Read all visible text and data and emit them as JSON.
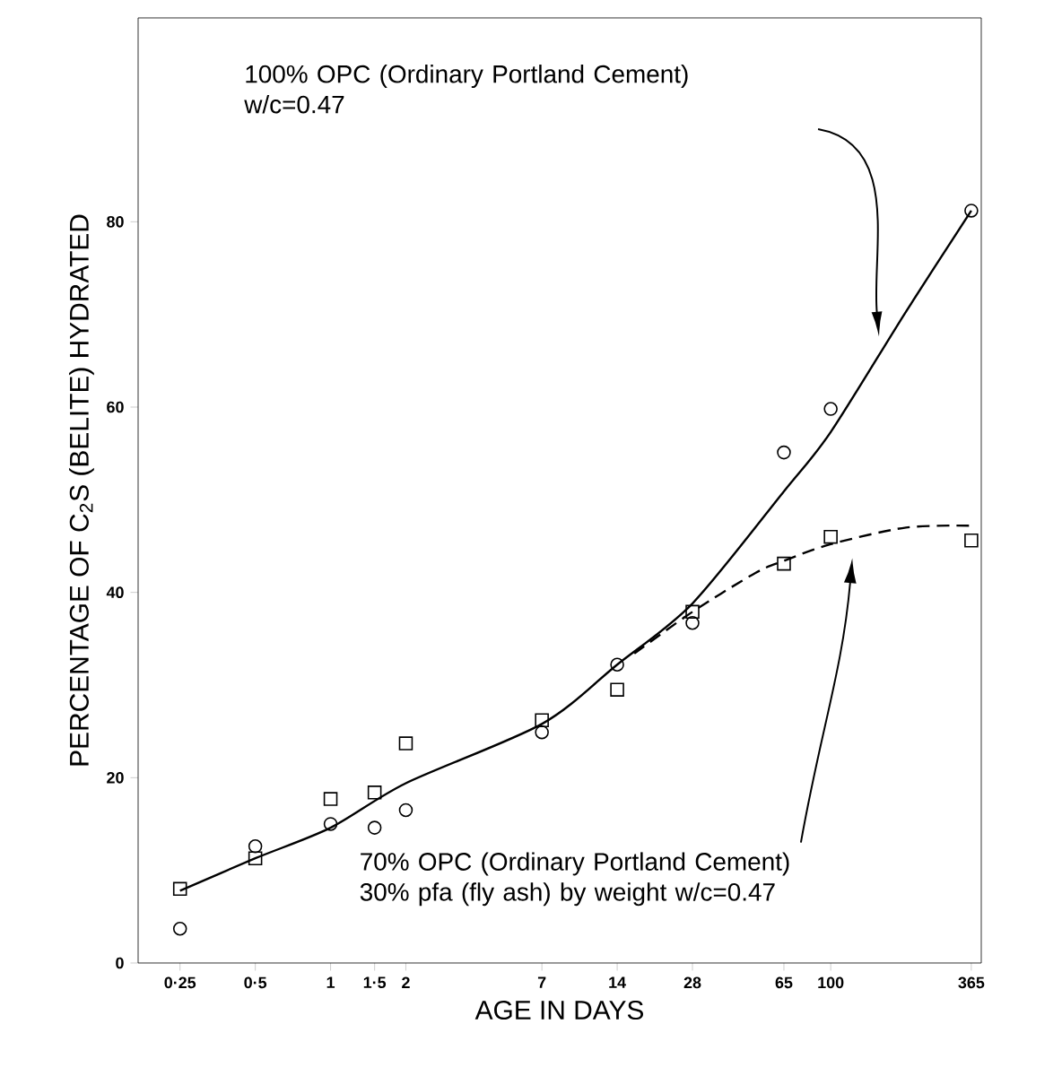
{
  "chart_data": {
    "type": "scatter",
    "xlabel": "AGE IN DAYS",
    "ylabel": "PERCENTAGE OF C$_{2}$S (BELITE) HYDRATED",
    "annotations": [
      "100% OPC (Ordinary Portland Cement) w/c=0.47",
      "70% OPC (Ordinary Portland Cement) 30% pfa (fly ash) by weight w/c=0.47"
    ],
    "log": "x",
    "xlim": [
      0.17,
      400
    ],
    "ylim": [
      0,
      102
    ],
    "xticks": [
      {
        "value": 0.25,
        "label": "0·25"
      },
      {
        "value": 0.5,
        "label": "0·5"
      },
      1,
      {
        "value": 1.5,
        "label": "1·5"
      },
      2,
      7,
      14,
      28,
      65,
      100,
      365
    ],
    "yticks": [
      0,
      20,
      40,
      60,
      80
    ],
    "series": [
      {
        "marker": "circle",
        "color": "#000000",
        "x": [
          0.25,
          0.5,
          1,
          1.5,
          2,
          7,
          14,
          28,
          65,
          100,
          365
        ],
        "values": [
          3.7,
          12.6,
          15,
          14.6,
          16.5,
          24.9,
          32.2,
          36.7,
          55.1,
          59.8,
          81.2
        ]
      },
      {
        "type": "line",
        "line_style": "solid",
        "color": "#000000",
        "x": [
          0.25,
          0.5,
          1,
          2,
          7,
          14,
          28,
          65,
          100,
          200,
          365
        ],
        "values": [
          7.8,
          11.3,
          14.6,
          19.4,
          25.8,
          32.2,
          38.8,
          50.9,
          57.3,
          70.3,
          81.2
        ]
      },
      {
        "marker": "square",
        "color": "#000000",
        "x": [
          0.25,
          0.5,
          1,
          1.5,
          2,
          7,
          14,
          28,
          65,
          100,
          365
        ],
        "values": [
          8.0,
          11.3,
          17.7,
          18.4,
          23.7,
          26.2,
          29.5,
          37.9,
          43.1,
          46.0,
          45.6
        ]
      },
      {
        "type": "line",
        "line_style": "dashed",
        "color": "#000000",
        "x": [
          16.4,
          28,
          50,
          65,
          100,
          200,
          365
        ],
        "values": [
          33.4,
          37.9,
          42.1,
          43.4,
          45.2,
          47,
          47.2
        ]
      }
    ]
  }
}
